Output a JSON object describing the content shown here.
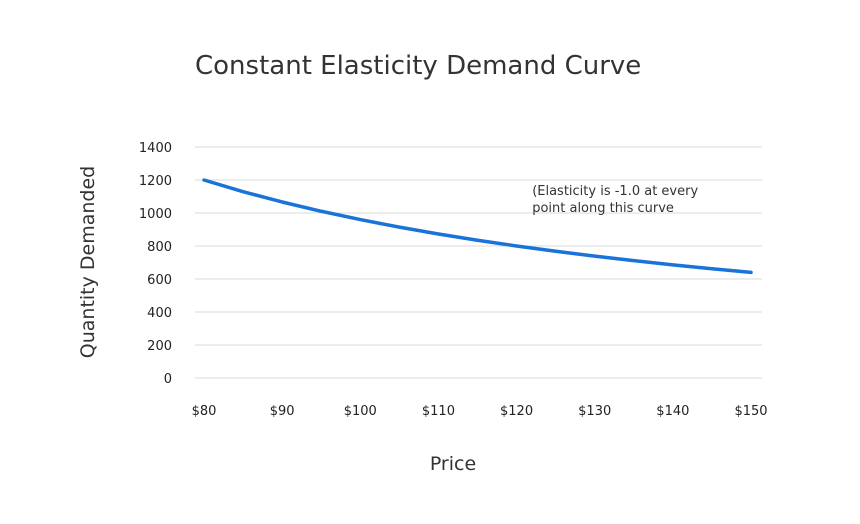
{
  "chart_data": {
    "type": "line",
    "title": "Constant Elasticity Demand Curve",
    "xlabel": "Price",
    "ylabel": "Quantity Demanded",
    "x_tick_labels": [
      "$80",
      "$90",
      "$100",
      "$110",
      "$120",
      "$130",
      "$140",
      "$150"
    ],
    "x_tick_values": [
      80,
      90,
      100,
      110,
      120,
      130,
      140,
      150
    ],
    "y_tick_labels": [
      "0",
      "200",
      "400",
      "600",
      "800",
      "1000",
      "1200",
      "1400"
    ],
    "y_tick_values": [
      0,
      200,
      400,
      600,
      800,
      1000,
      1200,
      1400
    ],
    "xlim": [
      80,
      150
    ],
    "ylim": [
      0,
      1400
    ],
    "grid": "horizontal",
    "legend": "none",
    "series": [
      {
        "color": "#1a73d9",
        "x": [
          80,
          85,
          90,
          95,
          100,
          105,
          110,
          115,
          120,
          125,
          130,
          135,
          140,
          145,
          150
        ],
        "y": [
          1200,
          1129.4,
          1066.7,
          1010.5,
          960,
          914.3,
          872.7,
          834.8,
          800,
          768,
          738.5,
          711.1,
          685.7,
          662.1,
          640
        ]
      }
    ],
    "annotations": [
      {
        "lines": [
          "(Elasticity is -1.0 at every",
          "point along this curve"
        ],
        "anchor_x": 122,
        "anchor_y": 1110
      }
    ]
  }
}
